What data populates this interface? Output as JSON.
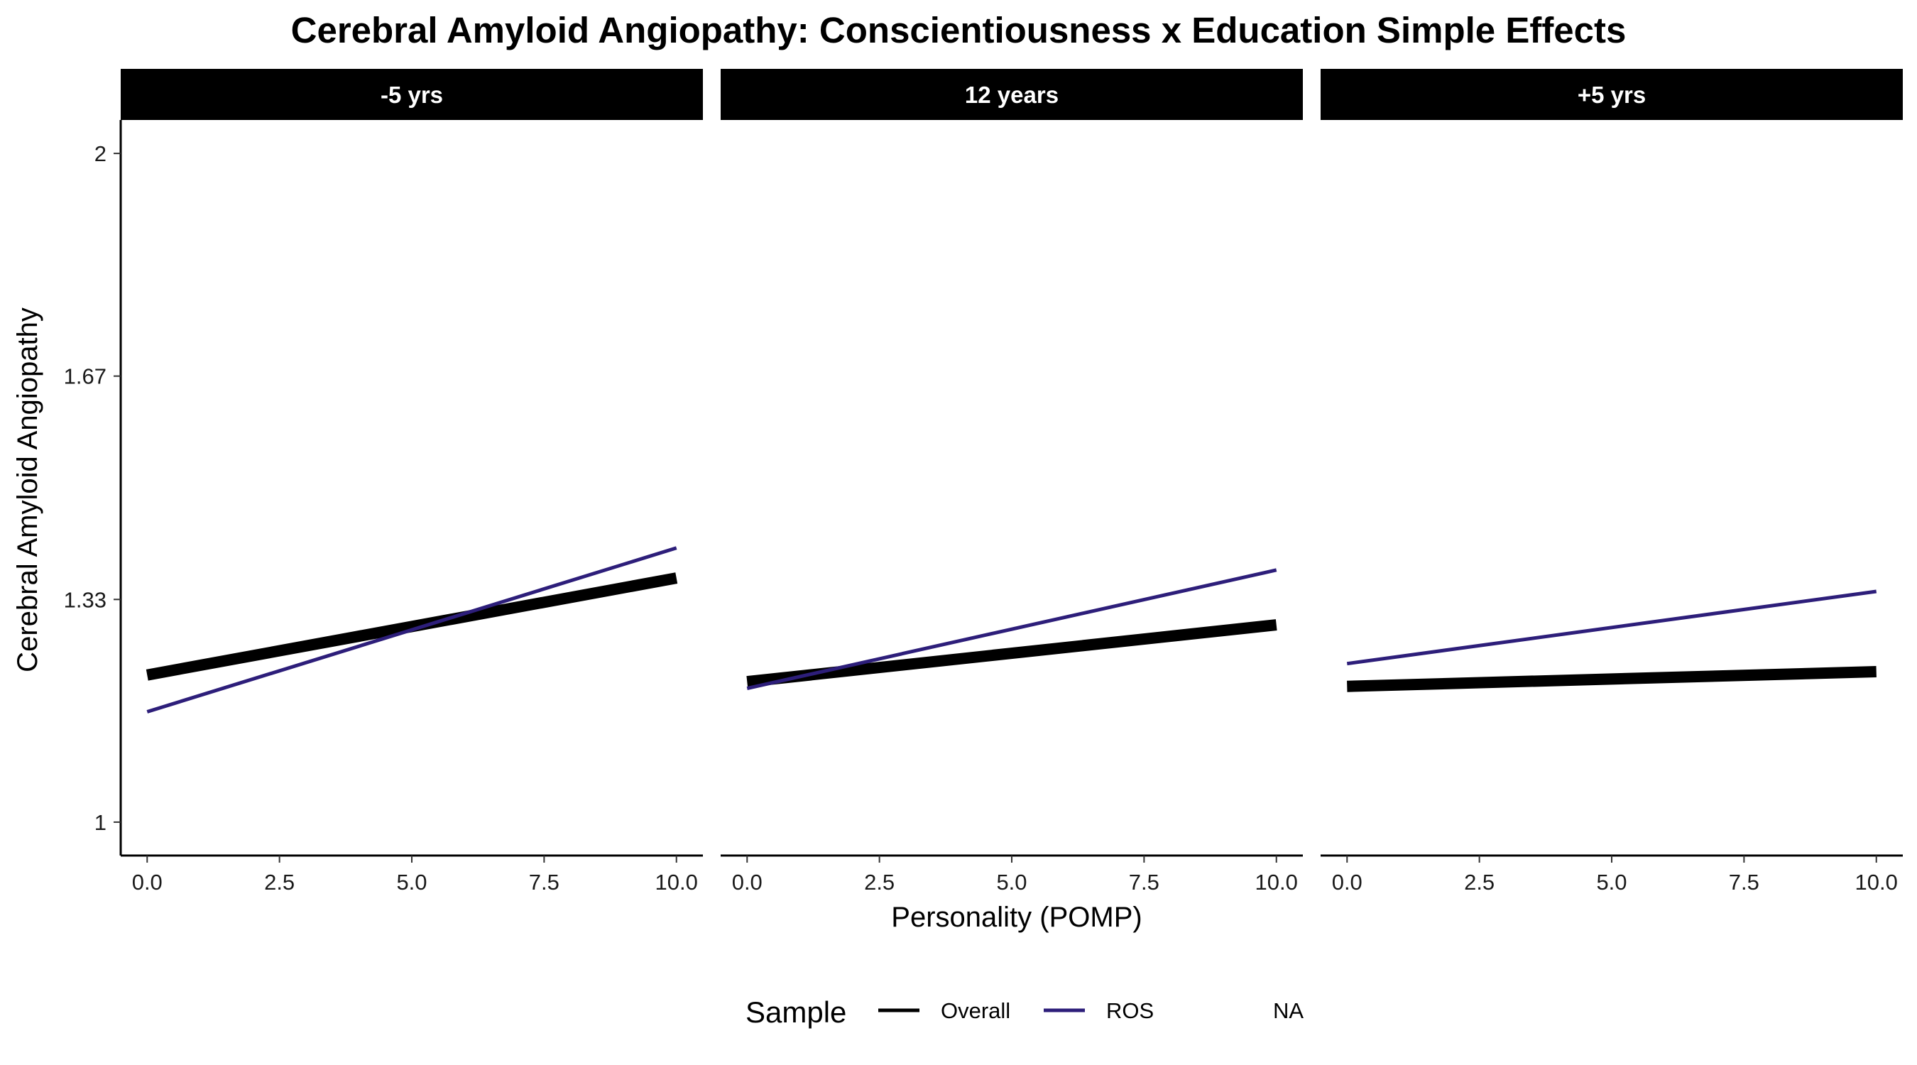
{
  "chart_data": {
    "type": "line",
    "title": "Cerebral Amyloid Angiopathy: Conscientiousness x Education Simple Effects",
    "xlabel": "Personality (POMP)",
    "ylabel": "Cerebral Amyloid Angiopathy",
    "x_ticks": [
      "0.0",
      "2.5",
      "5.0",
      "7.5",
      "10.0"
    ],
    "x_tick_values": [
      0,
      2.5,
      5,
      7.5,
      10
    ],
    "y_ticks": [
      "1",
      "1.33",
      "1.67",
      "2"
    ],
    "y_tick_values": [
      1,
      1.333,
      1.667,
      2
    ],
    "xlim": [
      -0.5,
      10.5
    ],
    "ylim": [
      0.95,
      2.05
    ],
    "grid": false,
    "legend": {
      "title": "Sample",
      "position": "bottom",
      "entries": [
        {
          "label": "Overall",
          "color": "#000000"
        },
        {
          "label": "ROS",
          "color": "#2d1e7a"
        },
        {
          "label": "NA",
          "color": ""
        }
      ]
    },
    "panels": [
      {
        "label": "-5 yrs",
        "series": [
          {
            "name": "Overall",
            "color": "#000000",
            "x": [
              0,
              10
            ],
            "y": [
              1.22,
              1.365
            ]
          },
          {
            "name": "ROS",
            "color": "#2d1e7a",
            "x": [
              0,
              10
            ],
            "y": [
              1.165,
              1.41
            ]
          }
        ]
      },
      {
        "label": "12 years",
        "series": [
          {
            "name": "Overall",
            "color": "#000000",
            "x": [
              0,
              10
            ],
            "y": [
              1.21,
              1.295
            ]
          },
          {
            "name": "ROS",
            "color": "#2d1e7a",
            "x": [
              0,
              10
            ],
            "y": [
              1.2,
              1.377
            ]
          }
        ]
      },
      {
        "label": "+5 yrs",
        "series": [
          {
            "name": "Overall",
            "color": "#000000",
            "x": [
              0,
              10
            ],
            "y": [
              1.203,
              1.225
            ]
          },
          {
            "name": "ROS",
            "color": "#2d1e7a",
            "x": [
              0,
              10
            ],
            "y": [
              1.237,
              1.345
            ]
          }
        ]
      }
    ]
  }
}
